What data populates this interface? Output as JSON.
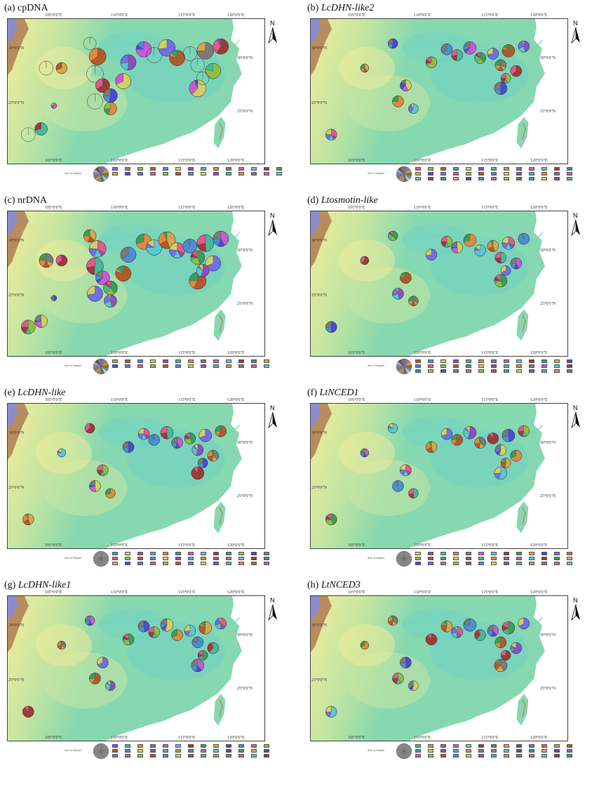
{
  "panels": [
    {
      "letter": "(a)",
      "name": "cpDNA",
      "italic": false
    },
    {
      "letter": "(b)",
      "name": "LcDHN-like2",
      "italic": true
    },
    {
      "letter": "(c)",
      "name": "nrDNA",
      "italic": false
    },
    {
      "letter": "(d)",
      "name": "Ltosmotin-like",
      "italic": true
    },
    {
      "letter": "(e)",
      "name": "LcDHN-like",
      "italic": true
    },
    {
      "letter": "(f)",
      "name": "LtNCED1",
      "italic": true
    },
    {
      "letter": "(g)",
      "name": "LcDHN-like1",
      "italic": true
    },
    {
      "letter": "(h)",
      "name": "LtNCED3",
      "italic": true
    }
  ],
  "axis_labels": {
    "lon_105": "105°0'0\"E",
    "lon_110": "110°0'0\"E",
    "lon_115": "115°0'0\"E",
    "lon_120": "120°0'0\"E",
    "lat_30": "30°0'0\"N",
    "lat_25": "25°0'0\"N"
  },
  "north_label": "N",
  "legend_caption": "Size of Sample",
  "colors": {
    "water": "#6fd2c4",
    "lowland": "#86d8b0",
    "upland": "#c8e6a0",
    "plateau": "#f2ec9c",
    "mountain": "#b88c5c",
    "peak": "#8c8ccc"
  }
}
